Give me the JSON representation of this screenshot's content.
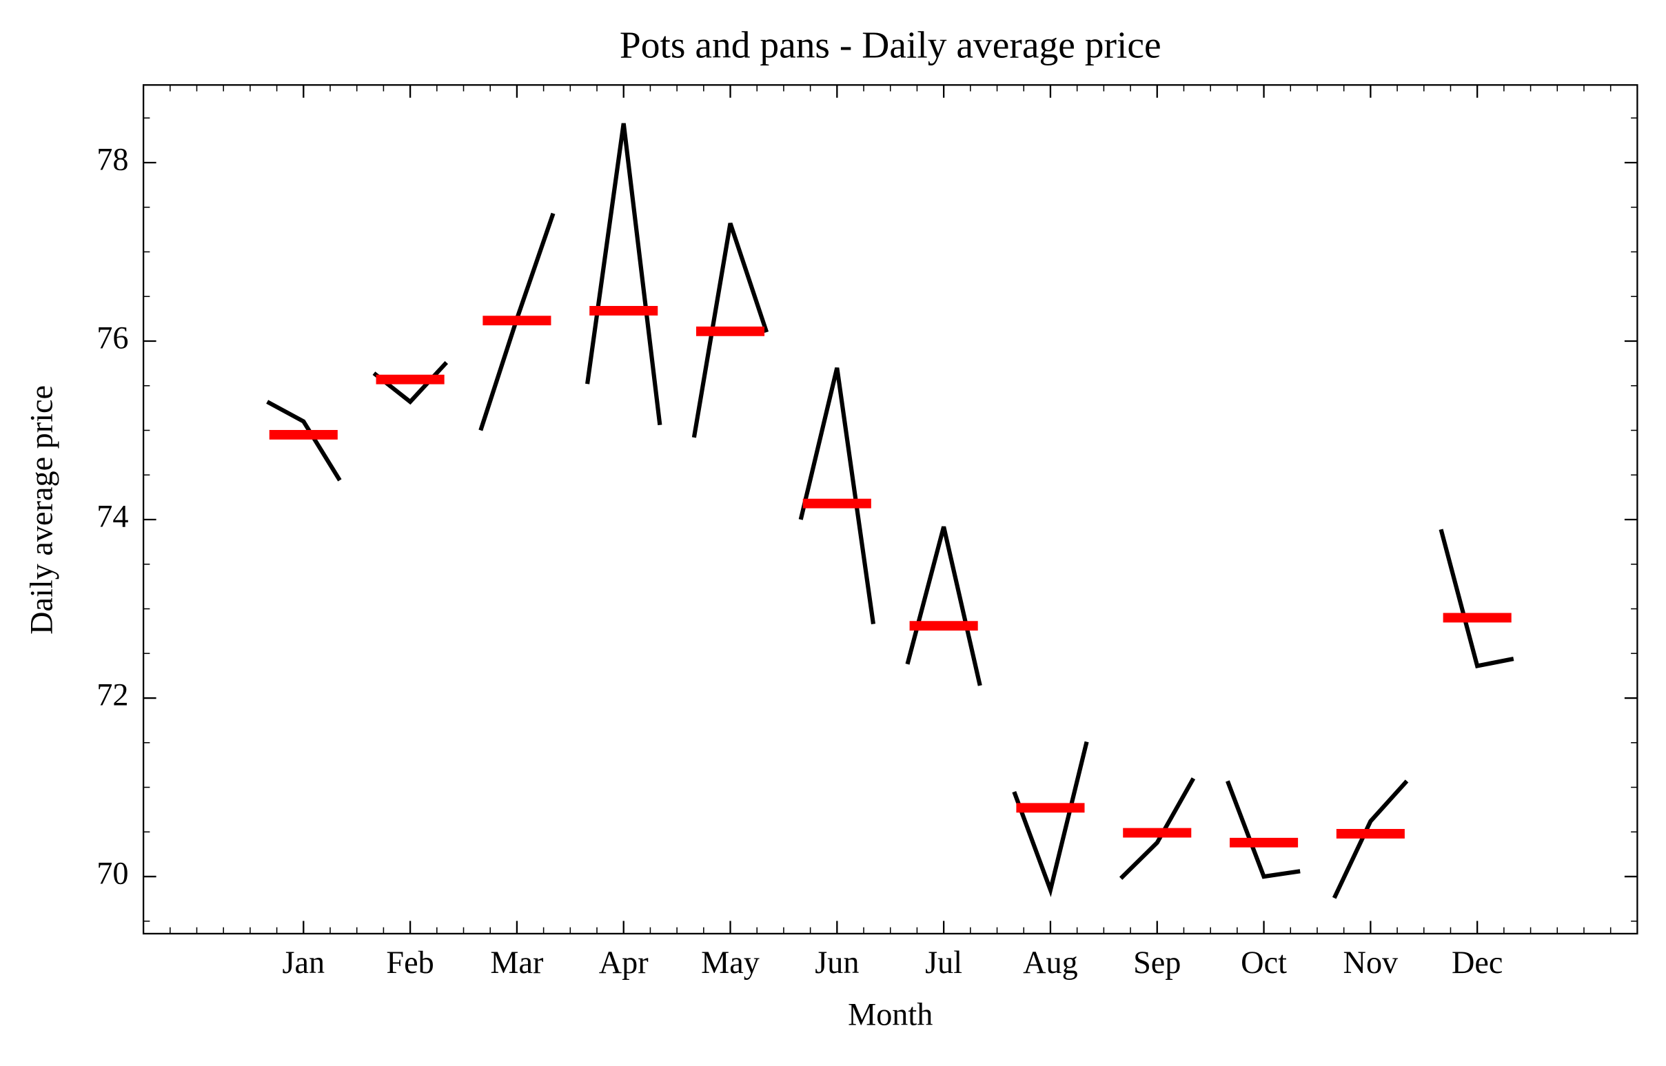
{
  "chart_data": {
    "type": "month_plot",
    "title": "Pots and pans - Daily average price",
    "xlabel": "Month",
    "ylabel": "Daily average price",
    "categories": [
      "Jan",
      "Feb",
      "Mar",
      "Apr",
      "May",
      "Jun",
      "Jul",
      "Aug",
      "Sep",
      "Oct",
      "Nov",
      "Dec"
    ],
    "values": [
      [
        75.32,
        75.1,
        74.44
      ],
      [
        75.64,
        75.32,
        75.76
      ],
      [
        75.0,
        76.25,
        77.43
      ],
      [
        75.52,
        78.44,
        75.06
      ],
      [
        74.92,
        77.32,
        76.1
      ],
      [
        74.0,
        75.7,
        72.83
      ],
      [
        72.38,
        73.92,
        72.14
      ],
      [
        70.95,
        69.85,
        71.51
      ],
      [
        69.98,
        70.38,
        71.1
      ],
      [
        71.07,
        70.0,
        70.06
      ],
      [
        69.76,
        70.62,
        71.07
      ],
      [
        73.89,
        72.36,
        72.44
      ]
    ],
    "means": [
      74.95,
      75.57,
      76.23,
      76.34,
      76.11,
      74.18,
      72.81,
      70.77,
      70.49,
      70.38,
      70.48,
      72.9
    ],
    "color": "#000000",
    "mean_color": "#ff0000",
    "ylim": [
      69.36,
      78.87
    ],
    "yticks": [
      70,
      72,
      74,
      76,
      78
    ]
  }
}
